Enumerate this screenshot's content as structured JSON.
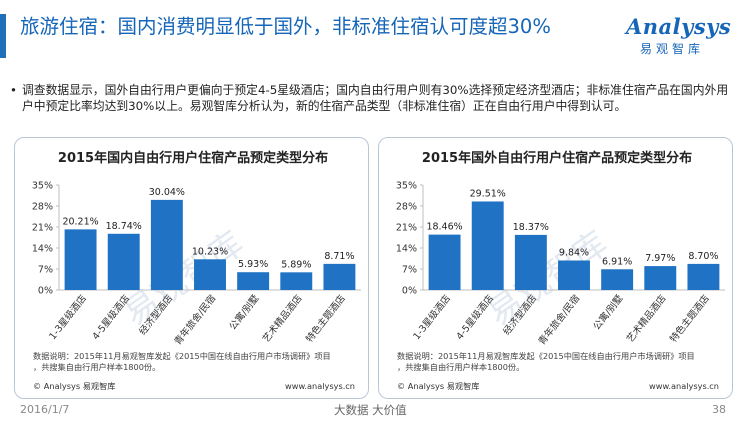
{
  "header": {
    "title": "旅游住宿：国内消费明显低于国外，非标准住宿认可度超30%"
  },
  "logo": {
    "wordmark": "Analysys",
    "subtitle": "易观智库"
  },
  "summary": {
    "bullet": "•",
    "text": "调查数据显示，国外自由行用户更偏向于预定4-5星级酒店；国内自由行用户则有30%选择预定经济型酒店；非标准住宿产品在国内外用户中预定比率均达到30%以上。易观智库分析认为，新的住宿产品类型（非标准住宿）正在自由行用户中得到认可。"
  },
  "panels": {
    "left": {
      "note": "数据说明：2015年11月易观智库发起《2015中国在线自由行用户市场调研》项目，共搜集自由行用户样本1800份。",
      "copyright": "© Analysys 易观智库",
      "site": "www.analysys.cn",
      "watermark": "易观智库"
    },
    "right": {
      "note": "数据说明：2015年11月易观智库发起《2015中国在线自由行用户市场调研》项目，共搜集自由行用户样本1800份。",
      "copyright": "© Analysys 易观智库",
      "site": "www.analysys.cn",
      "watermark": "易观智库"
    }
  },
  "footer": {
    "date": "2016/1/7",
    "center": "大数据 大价值",
    "page": "38"
  },
  "colors": {
    "bar": "#1f72c4",
    "title": "#1565b8",
    "axis": "#bfbfbf"
  },
  "chart_data": [
    {
      "type": "bar",
      "title": "2015年国内自由行用户住宿产品预定类型分布",
      "categories": [
        "1-3星级酒店",
        "4-5星级酒店",
        "经济型酒店",
        "青年旅舍/民宿",
        "公寓/别墅",
        "艺术精品酒店",
        "特色主题酒店"
      ],
      "values": [
        20.21,
        18.74,
        30.04,
        10.23,
        5.93,
        5.89,
        8.71
      ],
      "value_labels": [
        "20.21%",
        "18.74%",
        "30.04%",
        "10.23%",
        "5.93%",
        "5.89%",
        "8.71%"
      ],
      "yticks": [
        "0%",
        "7%",
        "14%",
        "21%",
        "28%",
        "35%"
      ],
      "ylim": [
        0,
        35
      ],
      "grid": false
    },
    {
      "type": "bar",
      "title": "2015年国外自由行用户住宿产品预定类型分布",
      "categories": [
        "1-3星级酒店",
        "4-5星级酒店",
        "经济型酒店",
        "青年旅舍/民宿",
        "公寓/别墅",
        "艺术精品酒店",
        "特色主题酒店"
      ],
      "values": [
        18.46,
        29.51,
        18.37,
        9.84,
        6.91,
        7.97,
        8.7
      ],
      "value_labels": [
        "18.46%",
        "29.51%",
        "18.37%",
        "9.84%",
        "6.91%",
        "7.97%",
        "8.70%"
      ],
      "yticks": [
        "0%",
        "7%",
        "14%",
        "21%",
        "28%",
        "35%"
      ],
      "ylim": [
        0,
        35
      ],
      "grid": false
    }
  ]
}
